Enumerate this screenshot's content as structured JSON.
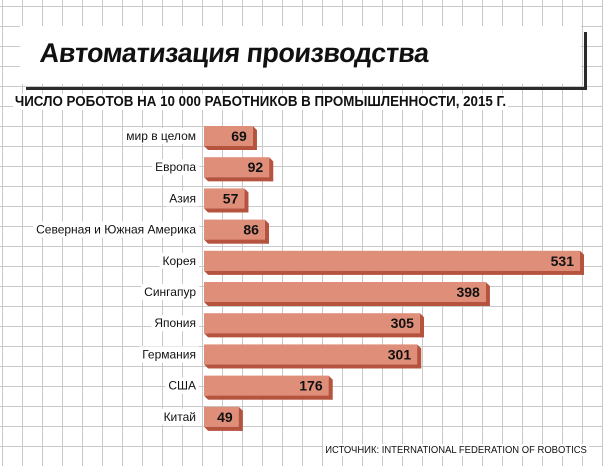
{
  "title": "Автоматизация производства",
  "source": "ИСТОЧНИК: INTERNATIONAL FEDERATION OF ROBOTICS",
  "colors": {
    "bar": "#df8f79",
    "bar_shadow": "#b5533f",
    "text": "#111111"
  },
  "chart_data": {
    "type": "bar",
    "orientation": "horizontal",
    "title": "ЧИСЛО РОБОТОВ НА 10 000 РАБОТНИКОВ В ПРОМЫШЛЕННОСТИ, 2015 Г.",
    "categories": [
      "мир в целом",
      "Европа",
      "Азия",
      "Северная и Южная Америка",
      "Корея",
      "Сингапур",
      "Япония",
      "Германия",
      "США",
      "Китай"
    ],
    "values": [
      69,
      92,
      57,
      86,
      531,
      398,
      305,
      301,
      176,
      49
    ],
    "xlim": [
      0,
      531
    ],
    "grid": true,
    "legend": "none"
  }
}
